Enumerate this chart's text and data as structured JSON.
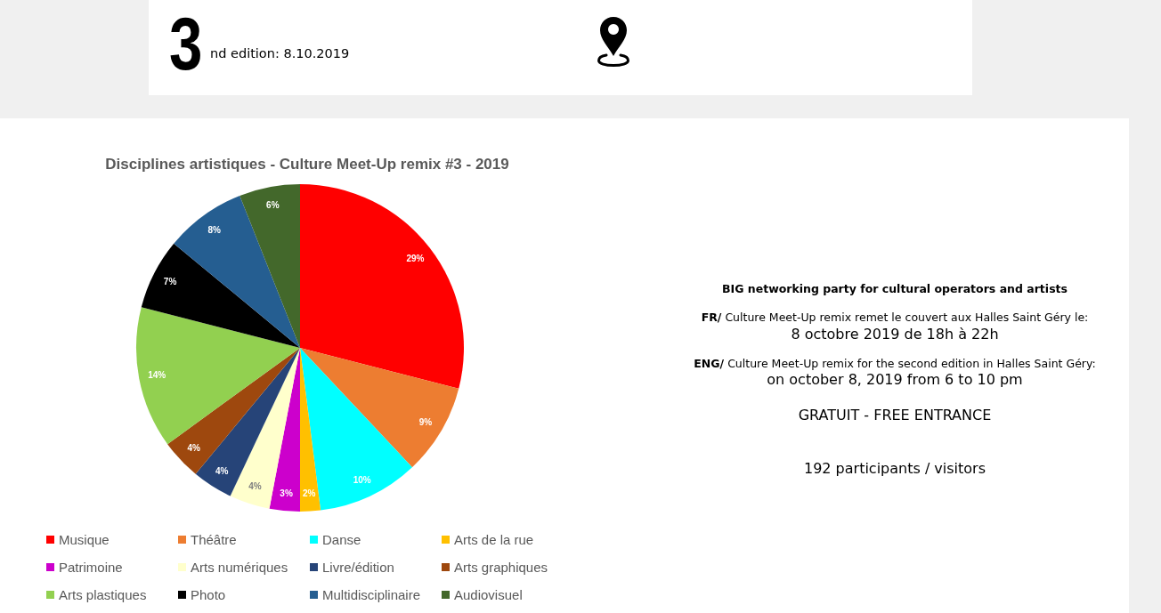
{
  "chart_data": {
    "type": "pie",
    "title": "Disciplines artistiques - Culture Meet-Up remix #3 - 2019",
    "categories": [
      "Musique",
      "Théâtre",
      "Danse",
      "Arts de la rue",
      "Patrimoine",
      "Arts numériques",
      "Livre/édition",
      "Arts graphiques",
      "Arts plastiques",
      "Photo",
      "Multidisciplinaire",
      "Audiovisuel"
    ],
    "values": [
      29,
      9,
      10,
      2,
      3,
      4,
      4,
      4,
      14,
      7,
      8,
      6
    ],
    "colors": [
      "#ff0000",
      "#ed7d31",
      "#00ffff",
      "#ffc000",
      "#cc00cc",
      "#ffffcc",
      "#264478",
      "#9e480e",
      "#92d050",
      "#000000",
      "#255e91",
      "#43682b"
    ],
    "value_labels": [
      "29%",
      "9%",
      "10%",
      "2%",
      "3%",
      "4%",
      "4%",
      "4%",
      "14%",
      "7%",
      "8%",
      "6%"
    ],
    "legend": "bottom",
    "annotations": [
      "3",
      "nd edition: 8.10.2019",
      "BIG networking party for cultural operators and artists",
      "FR/",
      "Culture Meet-Up remix remet le couvert aux Halles Saint Géry le:",
      "8 octobre 2019 de 18h à 22h",
      "ENG/",
      "Culture Meet-Up remix for the second edition in Halles Saint Géry:",
      "on october 8, 2019 from 6 to 10 pm",
      "GRATUIT - FREE ENTRANCE",
      "192 participants / visitors"
    ]
  }
}
